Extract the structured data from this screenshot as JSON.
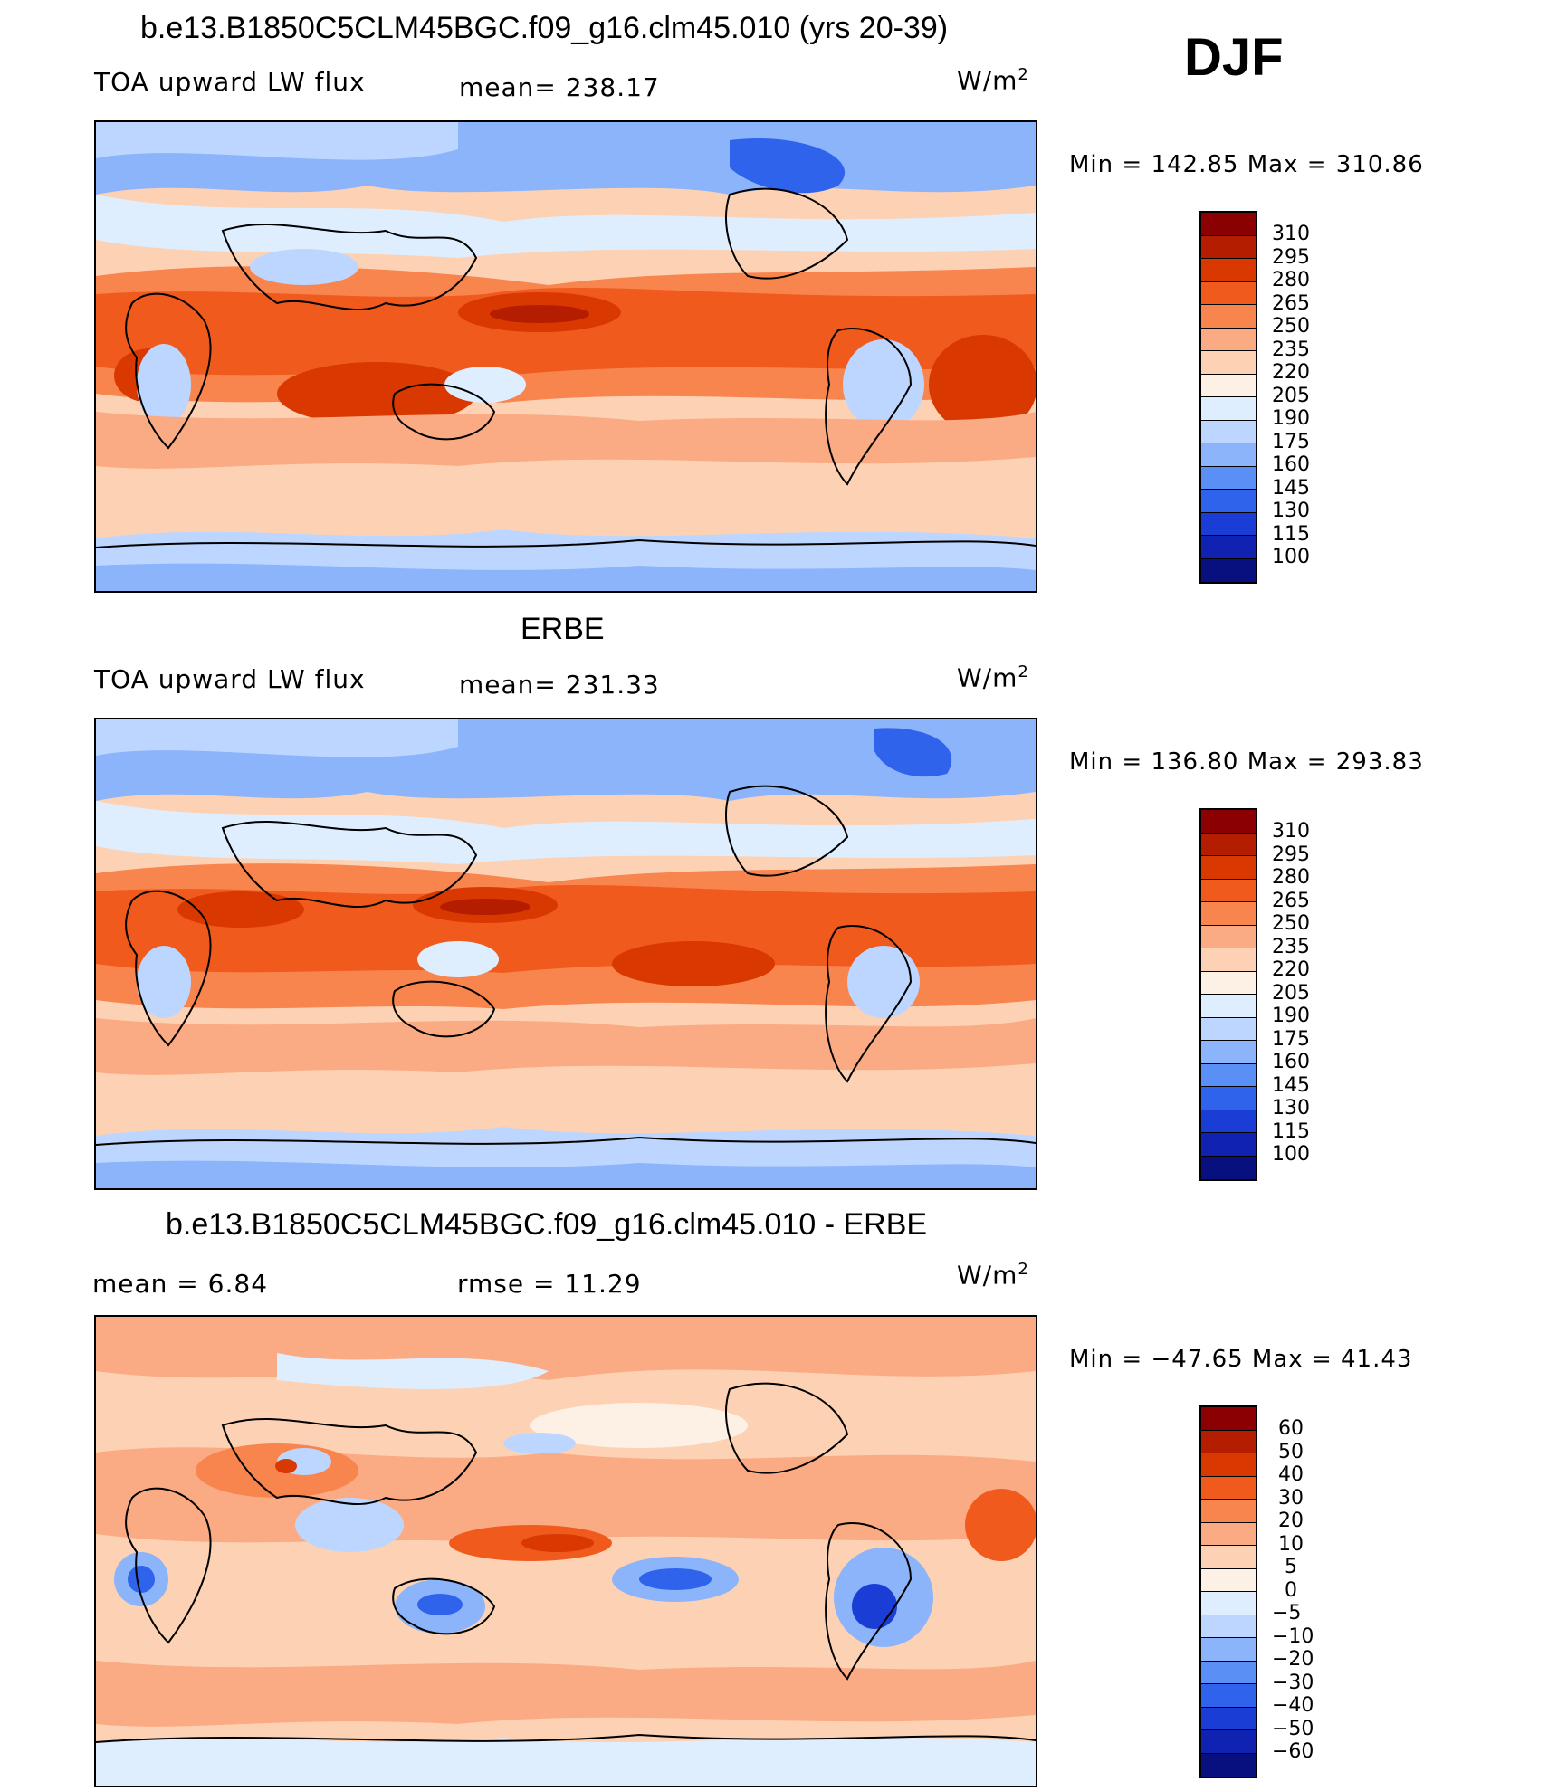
{
  "header": {
    "season": "DJF"
  },
  "panels": [
    {
      "title": "b.e13.B1850C5CLM45BGC.f09_g16.clm45.010 (yrs 20-39)",
      "variable": "TOA upward LW flux",
      "stat_left": "",
      "stat_mid": "mean=  238.17",
      "units": "W/m",
      "units_sup": "2",
      "minmax": "Min  =  142.85  Max  =  310.86"
    },
    {
      "title": "ERBE",
      "variable": "TOA upward LW flux",
      "stat_left": "",
      "stat_mid": "mean=  231.33",
      "units": "W/m",
      "units_sup": "2",
      "minmax": "Min  =  136.80  Max  =  293.83"
    },
    {
      "title": "b.e13.B1850C5CLM45BGC.f09_g16.clm45.010 - ERBE",
      "variable": "",
      "stat_left": "mean  =      6.84",
      "stat_mid": "rmse  =     11.29",
      "units": "W/m",
      "units_sup": "2",
      "minmax": "Min  =  −47.65  Max  =    41.43"
    }
  ],
  "chart_data": [
    {
      "type": "heatmap",
      "title": "b.e13.B1850C5CLM45BGC.f09_g16.clm45.010 (yrs 20-39)",
      "variable": "TOA upward LW flux",
      "units": "W/m2",
      "mean": 238.17,
      "min": 142.85,
      "max": 310.86,
      "colorbar_levels": [
        "310",
        "295",
        "280",
        "265",
        "250",
        "235",
        "220",
        "205",
        "190",
        "175",
        "160",
        "145",
        "130",
        "115",
        "100"
      ],
      "colorbar_colors": [
        "#8b0000",
        "#b51d00",
        "#d93800",
        "#f05a1d",
        "#f8844e",
        "#fbab84",
        "#fdd2b4",
        "#fdf0e4",
        "#dfeeff",
        "#bcd6ff",
        "#8cb4fb",
        "#5a8ff5",
        "#2f63ec",
        "#1a3ed5",
        "#1022b2",
        "#08107f"
      ]
    },
    {
      "type": "heatmap",
      "title": "ERBE",
      "variable": "TOA upward LW flux",
      "units": "W/m2",
      "mean": 231.33,
      "min": 136.8,
      "max": 293.83,
      "colorbar_levels": [
        "310",
        "295",
        "280",
        "265",
        "250",
        "235",
        "220",
        "205",
        "190",
        "175",
        "160",
        "145",
        "130",
        "115",
        "100"
      ],
      "colorbar_colors": [
        "#8b0000",
        "#b51d00",
        "#d93800",
        "#f05a1d",
        "#f8844e",
        "#fbab84",
        "#fdd2b4",
        "#fdf0e4",
        "#dfeeff",
        "#bcd6ff",
        "#8cb4fb",
        "#5a8ff5",
        "#2f63ec",
        "#1a3ed5",
        "#1022b2",
        "#08107f"
      ]
    },
    {
      "type": "heatmap",
      "title": "b.e13.B1850C5CLM45BGC.f09_g16.clm45.010 - ERBE",
      "units": "W/m2",
      "mean": 6.84,
      "rmse": 11.29,
      "min": -47.65,
      "max": 41.43,
      "colorbar_levels": [
        "60",
        "50",
        "40",
        "30",
        "20",
        "10",
        "5",
        "0",
        "−5",
        "−10",
        "−20",
        "−30",
        "−40",
        "−50",
        "−60"
      ],
      "colorbar_colors": [
        "#8b0000",
        "#b51d00",
        "#d93800",
        "#f05a1d",
        "#f8844e",
        "#fbab84",
        "#fdd2b4",
        "#fdf0e4",
        "#dfeeff",
        "#bcd6ff",
        "#8cb4fb",
        "#5a8ff5",
        "#2f63ec",
        "#1a3ed5",
        "#1022b2",
        "#08107f"
      ]
    }
  ]
}
